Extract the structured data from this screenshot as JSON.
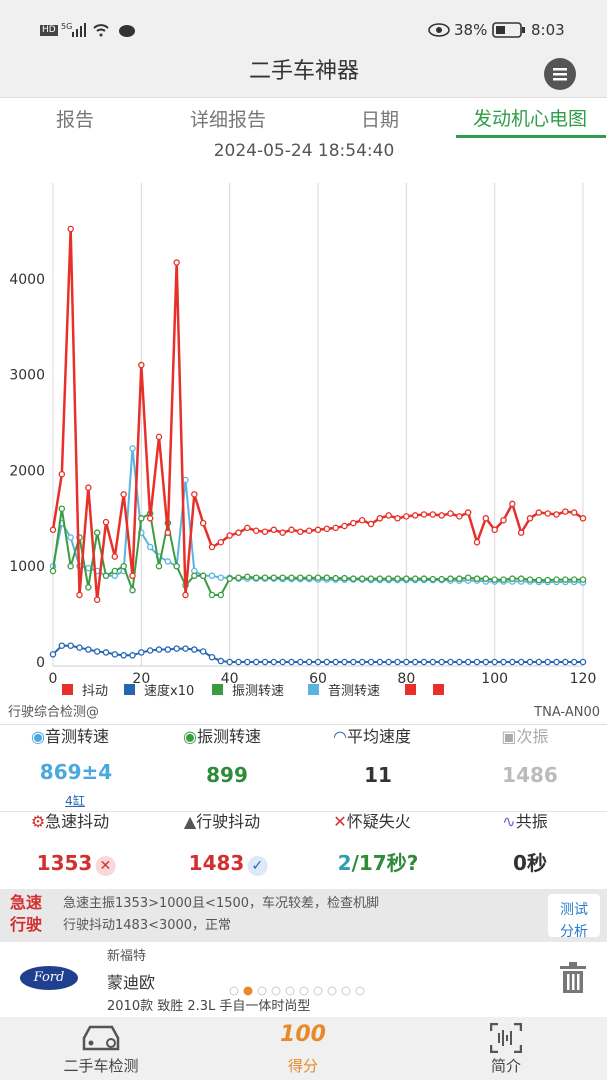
{
  "status_bar": {
    "left": [
      "HD",
      "5G"
    ],
    "battery": "38%",
    "time": "8:03"
  },
  "header": {
    "title": "二手车神器"
  },
  "tabs": [
    "报告",
    "详细报告",
    "日期",
    "发动机心电图"
  ],
  "datetime": "2024-05-24 18:54:40",
  "chart_data": {
    "type": "line",
    "grid": true,
    "x": [
      0,
      2,
      4,
      6,
      8,
      10,
      12,
      14,
      16,
      18,
      20,
      22,
      24,
      26,
      28,
      30,
      32,
      34,
      36,
      38,
      40,
      42,
      44,
      46,
      48,
      50,
      52,
      54,
      56,
      58,
      60,
      62,
      64,
      66,
      68,
      70,
      72,
      74,
      76,
      78,
      80,
      82,
      84,
      86,
      88,
      90,
      92,
      94,
      96,
      98,
      100,
      102,
      104,
      106,
      108,
      110,
      112,
      114,
      116,
      118,
      120
    ],
    "series": [
      {
        "name": "速度x10",
        "color": "#2565b4",
        "values": [
          80,
          170,
          170,
          150,
          130,
          110,
          100,
          80,
          70,
          70,
          100,
          120,
          130,
          130,
          140,
          140,
          130,
          110,
          50,
          10,
          0,
          0,
          0,
          0,
          0,
          0,
          0,
          0,
          0,
          0,
          0,
          0,
          0,
          0,
          0,
          0,
          0,
          0,
          0,
          0,
          0,
          0,
          0,
          0,
          0,
          0,
          0,
          0,
          0,
          0,
          0,
          0,
          0,
          0,
          0,
          0,
          0,
          0,
          0,
          0,
          0
        ]
      },
      {
        "name": "音测转速",
        "color": "#5ab4e0",
        "values": [
          1000,
          1450,
          1300,
          1000,
          980,
          950,
          900,
          900,
          950,
          2230,
          1350,
          1200,
          1100,
          1050,
          1000,
          1900,
          950,
          900,
          900,
          880,
          880,
          870,
          870,
          870,
          870,
          870,
          865,
          865,
          865,
          865,
          860,
          860,
          860,
          860,
          860,
          860,
          855,
          855,
          855,
          855,
          855,
          855,
          855,
          855,
          855,
          850,
          850,
          850,
          850,
          840,
          840,
          840,
          840,
          840,
          840,
          835,
          835,
          835,
          835,
          835,
          830
        ]
      },
      {
        "name": "振测转速",
        "color": "#3a9c40",
        "values": [
          950,
          1600,
          1000,
          1300,
          780,
          1350,
          900,
          950,
          1000,
          750,
          1500,
          1550,
          1000,
          1450,
          1000,
          800,
          900,
          900,
          700,
          700,
          870,
          880,
          890,
          880,
          880,
          880,
          880,
          880,
          880,
          880,
          880,
          880,
          875,
          875,
          870,
          870,
          870,
          870,
          870,
          870,
          870,
          870,
          870,
          865,
          865,
          870,
          870,
          880,
          870,
          870,
          860,
          860,
          870,
          870,
          860,
          855,
          855,
          860,
          860,
          860,
          860
        ]
      },
      {
        "name": "抖动",
        "color": "#e8302a",
        "values": [
          1380,
          1960,
          4520,
          700,
          1820,
          650,
          1460,
          1100,
          1750,
          900,
          3100,
          1500,
          2350,
          1350,
          4170,
          700,
          1750,
          1450,
          1200,
          1250,
          1320,
          1350,
          1400,
          1370,
          1360,
          1380,
          1350,
          1380,
          1360,
          1370,
          1380,
          1390,
          1400,
          1420,
          1450,
          1480,
          1440,
          1500,
          1530,
          1500,
          1520,
          1530,
          1540,
          1540,
          1530,
          1550,
          1520,
          1560,
          1250,
          1500,
          1380,
          1480,
          1650,
          1350,
          1500,
          1560,
          1550,
          1540,
          1570,
          1560,
          1500
        ]
      }
    ],
    "xlim": [
      0,
      120
    ],
    "xticks": [
      0,
      20,
      40,
      60,
      80,
      100,
      120
    ],
    "ylim": [
      0,
      5000
    ],
    "yticks": [
      0,
      1000,
      2000,
      3000,
      4000
    ]
  },
  "chart_footer": {
    "left": "行驶综合检测@",
    "right": "TNA-AN00"
  },
  "stats": [
    {
      "label": "音测转速",
      "value": "869±4",
      "sub": "4缸"
    },
    {
      "label": "振测转速",
      "value": "899"
    },
    {
      "label": "平均速度",
      "value": "11"
    },
    {
      "label": "次振",
      "value": "1486"
    },
    {
      "label": "急速抖动",
      "value": "1353"
    },
    {
      "label": "行驶抖动",
      "value": "1483"
    },
    {
      "label": "怀疑失火",
      "value": "2",
      "value_rest": "/17秒?"
    },
    {
      "label": "共振",
      "value": "0秒"
    }
  ],
  "diagnosis": {
    "rows": [
      {
        "label": "急速",
        "text": "急速主振1353>1000且<1500，车况较差，检查机脚"
      },
      {
        "label": "行驶",
        "text": "行驶抖动1483<3000，正常"
      }
    ],
    "button": [
      "测试",
      "分析"
    ]
  },
  "car": {
    "logo_text": "Ford",
    "brand": "新福特",
    "model": "蒙迪欧",
    "detail": "2010款 致胜 2.3L 手自一体时尚型"
  },
  "bottom_nav": {
    "items": [
      "二手车检测",
      "得分",
      "简介"
    ],
    "score_icon": "100"
  }
}
